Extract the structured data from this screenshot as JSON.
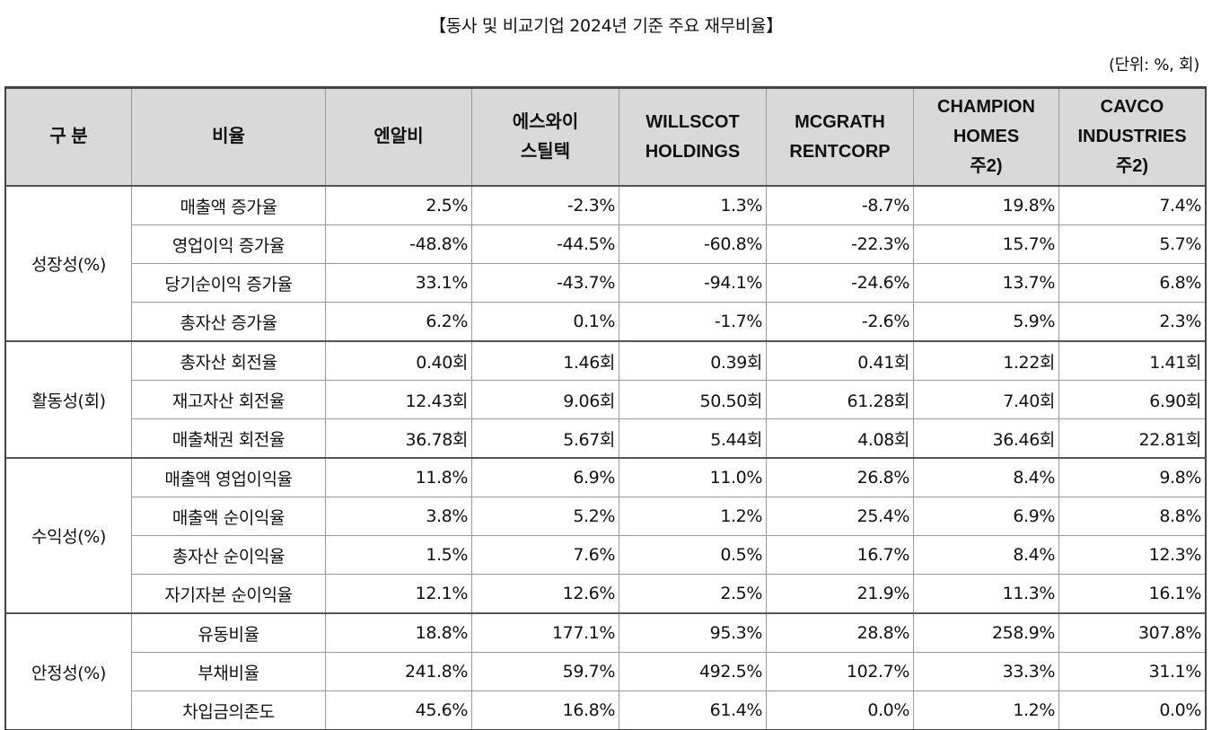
{
  "title": "【동사 및 비교기업 2024년 기준 주요 재무비율】",
  "unit": "(단위: %, 회)",
  "headers": {
    "col0": "구 분",
    "col1": "비율",
    "col2": [
      "엔알비"
    ],
    "col3": [
      "에스와이",
      "스틸텍"
    ],
    "col4": [
      "WILLSCOT",
      "HOLDINGS"
    ],
    "col5": [
      "MCGRATH",
      "RENTCORP"
    ],
    "col6": [
      "CHAMPION",
      "HOMES",
      "주2)"
    ],
    "col7": [
      "CAVCO",
      "INDUSTRIES",
      "주2)"
    ]
  },
  "groups": [
    {
      "name": "성장성(%)",
      "rows": [
        {
          "label": "매출액 증가율",
          "values": [
            "2.5%",
            "-2.3%",
            "1.3%",
            "-8.7%",
            "19.8%",
            "7.4%"
          ]
        },
        {
          "label": "영업이익 증가율",
          "values": [
            "-48.8%",
            "-44.5%",
            "-60.8%",
            "-22.3%",
            "15.7%",
            "5.7%"
          ]
        },
        {
          "label": "당기순이익 증가율",
          "values": [
            "33.1%",
            "-43.7%",
            "-94.1%",
            "-24.6%",
            "13.7%",
            "6.8%"
          ]
        },
        {
          "label": "총자산 증가율",
          "values": [
            "6.2%",
            "0.1%",
            "-1.7%",
            "-2.6%",
            "5.9%",
            "2.3%"
          ]
        }
      ]
    },
    {
      "name": "활동성(회)",
      "rows": [
        {
          "label": "총자산 회전율",
          "values": [
            "0.40회",
            "1.46회",
            "0.39회",
            "0.41회",
            "1.22회",
            "1.41회"
          ]
        },
        {
          "label": "재고자산 회전율",
          "values": [
            "12.43회",
            "9.06회",
            "50.50회",
            "61.28회",
            "7.40회",
            "6.90회"
          ]
        },
        {
          "label": "매출채권 회전율",
          "values": [
            "36.78회",
            "5.67회",
            "5.44회",
            "4.08회",
            "36.46회",
            "22.81회"
          ]
        }
      ]
    },
    {
      "name": "수익성(%)",
      "rows": [
        {
          "label": "매출액 영업이익율",
          "values": [
            "11.8%",
            "6.9%",
            "11.0%",
            "26.8%",
            "8.4%",
            "9.8%"
          ]
        },
        {
          "label": "매출액 순이익율",
          "values": [
            "3.8%",
            "5.2%",
            "1.2%",
            "25.4%",
            "6.9%",
            "8.8%"
          ]
        },
        {
          "label": "총자산 순이익율",
          "values": [
            "1.5%",
            "7.6%",
            "0.5%",
            "16.7%",
            "8.4%",
            "12.3%"
          ]
        },
        {
          "label": "자기자본 순이익율",
          "values": [
            "12.1%",
            "12.6%",
            "2.5%",
            "21.9%",
            "11.3%",
            "16.1%"
          ]
        }
      ]
    },
    {
      "name": "안정성(%)",
      "rows": [
        {
          "label": "유동비율",
          "values": [
            "18.8%",
            "177.1%",
            "95.3%",
            "28.8%",
            "258.9%",
            "307.8%"
          ]
        },
        {
          "label": "부채비율",
          "values": [
            "241.8%",
            "59.7%",
            "492.5%",
            "102.7%",
            "33.3%",
            "31.1%"
          ]
        },
        {
          "label": "차입금의존도",
          "values": [
            "45.6%",
            "16.8%",
            "61.4%",
            "0.0%",
            "1.2%",
            "0.0%"
          ]
        }
      ]
    }
  ]
}
